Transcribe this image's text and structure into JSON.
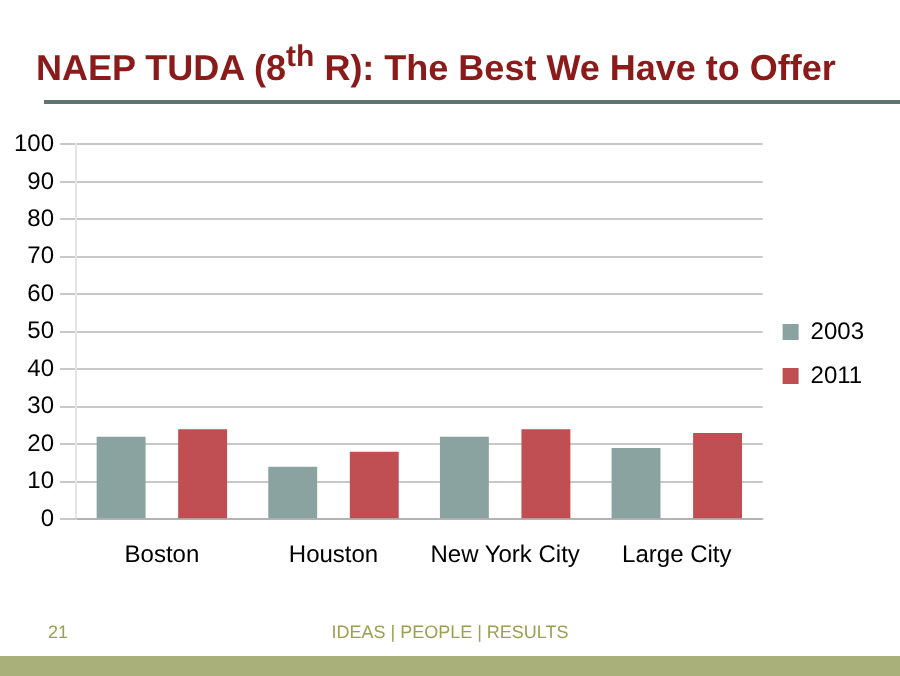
{
  "chart_data": {
    "type": "bar",
    "title": "NAEP TUDA (8$^{th}$ R): The Best We Have to Offer",
    "categories": [
      "Boston",
      "Houston",
      "New York City",
      "Large City"
    ],
    "series": [
      {
        "name": "2003",
        "color": "#8aa3a1",
        "values": [
          22,
          14,
          22,
          19
        ]
      },
      {
        "name": "2011",
        "color": "#bf4f52",
        "values": [
          24,
          18,
          24,
          23
        ]
      }
    ],
    "ylim": [
      0,
      100
    ],
    "yticks": [
      0,
      10,
      20,
      30,
      40,
      50,
      60,
      70,
      80,
      90,
      100
    ],
    "grid": "y",
    "legend": "right",
    "annotations": [
      "21",
      "IDEAS | PEOPLE | RESULTS"
    ]
  }
}
